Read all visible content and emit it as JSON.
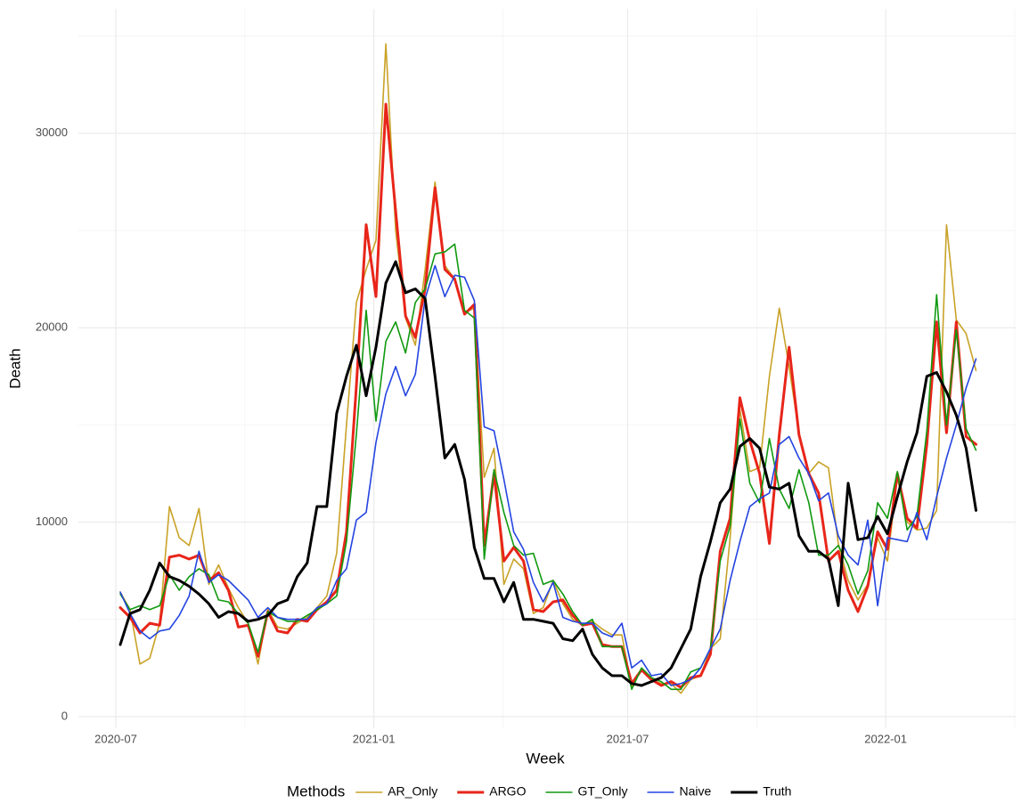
{
  "chart_data": {
    "type": "line",
    "x_label": "Week",
    "y_label": "Death",
    "legend_title": "Methods",
    "legend": "bottom",
    "grid": true,
    "ylim": [
      -600,
      36400
    ],
    "yticks": [
      0,
      10000,
      20000,
      30000
    ],
    "xticks": [
      "2020-07",
      "2021-01",
      "2021-07",
      "2022-01"
    ],
    "series": [
      {
        "name": "AR_Only",
        "color": "#c9a227",
        "width": 1.6,
        "values": [
          6400,
          5500,
          2700,
          3000,
          4800,
          10800,
          9200,
          8800,
          10700,
          6800,
          7800,
          6600,
          5600,
          4800,
          2700,
          5500,
          4600,
          4500,
          4800,
          5100,
          5600,
          6200,
          8400,
          15000,
          21300,
          23000,
          24500,
          34600,
          25000,
          20500,
          19100,
          23000,
          27500,
          23200,
          22500,
          20800,
          21000,
          12300,
          13800,
          6800,
          8100,
          7600,
          5300,
          5600,
          7000,
          5800,
          5000,
          4700,
          4900,
          4500,
          4200,
          4200,
          1500,
          2500,
          1900,
          1700,
          1700,
          1200,
          1900,
          2100,
          3500,
          4000,
          9200,
          15800,
          12600,
          12800,
          17500,
          21000,
          18000,
          14600,
          12500,
          13100,
          12800,
          8900,
          7000,
          6000,
          6800,
          9200,
          8000,
          12300,
          10000,
          9600,
          9700,
          10600,
          25300,
          20400,
          19700,
          17800
        ]
      },
      {
        "name": "ARGO",
        "color": "#e8251a",
        "width": 3,
        "values": [
          5600,
          5100,
          4300,
          4800,
          4700,
          8200,
          8300,
          8100,
          8300,
          7000,
          7400,
          6500,
          4600,
          4700,
          3100,
          5400,
          4400,
          4300,
          5000,
          4900,
          5500,
          5900,
          6500,
          9500,
          17000,
          25300,
          21600,
          31500,
          26000,
          20600,
          19500,
          22000,
          27200,
          23000,
          22500,
          20700,
          21200,
          8800,
          12500,
          8000,
          8700,
          8000,
          5500,
          5400,
          5900,
          6000,
          5200,
          4700,
          4800,
          3700,
          3600,
          3600,
          1700,
          2400,
          1900,
          1600,
          1800,
          1500,
          2000,
          2100,
          3200,
          8500,
          10200,
          16400,
          14200,
          12500,
          8900,
          14500,
          19000,
          14500,
          12500,
          11500,
          8000,
          8500,
          6500,
          5400,
          6700,
          9500,
          8600,
          12500,
          10200,
          9700,
          14000,
          20300,
          14600,
          20300,
          14400,
          14000
        ]
      },
      {
        "name": "GT_Only",
        "color": "#119910",
        "width": 1.6,
        "values": [
          6300,
          5500,
          5700,
          5500,
          5700,
          7300,
          6500,
          7200,
          7600,
          7300,
          6000,
          5900,
          5300,
          4800,
          3300,
          5400,
          5100,
          4900,
          4900,
          5200,
          5500,
          5800,
          6200,
          9000,
          14500,
          20900,
          15200,
          19300,
          20300,
          18700,
          21300,
          22000,
          23800,
          23900,
          24300,
          20900,
          20500,
          8100,
          12700,
          10500,
          8800,
          8300,
          8400,
          6800,
          7000,
          6300,
          5400,
          4700,
          5000,
          3600,
          3600,
          3600,
          1400,
          2500,
          2000,
          1800,
          1400,
          1400,
          2300,
          2500,
          3500,
          8000,
          9800,
          15300,
          12000,
          11000,
          14300,
          11700,
          10700,
          12700,
          11000,
          8300,
          8300,
          8800,
          7800,
          6300,
          7500,
          11000,
          10200,
          12600,
          9600,
          10300,
          14700,
          21700,
          15000,
          19900,
          14800,
          13700
        ]
      },
      {
        "name": "Naive",
        "color": "#2444e0",
        "width": 1.6,
        "values": [
          6400,
          5300,
          4400,
          4000,
          4400,
          4500,
          5200,
          6200,
          8500,
          6900,
          7300,
          7000,
          6500,
          6000,
          5100,
          5600,
          5100,
          5000,
          5000,
          5000,
          5600,
          5800,
          7000,
          7600,
          10100,
          10500,
          14100,
          16600,
          18000,
          16500,
          17600,
          21500,
          23200,
          21600,
          22700,
          22600,
          21400,
          14900,
          14700,
          12200,
          9500,
          8600,
          6900,
          5900,
          6900,
          5100,
          4900,
          4800,
          4800,
          4300,
          4100,
          4800,
          2500,
          2900,
          2100,
          2200,
          1600,
          1700,
          1900,
          2500,
          3500,
          4500,
          7000,
          9000,
          10800,
          11200,
          11500,
          14000,
          14400,
          13300,
          12500,
          11100,
          11500,
          9300,
          8300,
          7800,
          10100,
          5700,
          9200,
          9100,
          9000,
          10500,
          9100,
          11300,
          13300,
          15000,
          16900,
          18400
        ]
      },
      {
        "name": "Truth",
        "color": "#000000",
        "width": 3,
        "values": [
          3700,
          5300,
          5500,
          6500,
          7900,
          7200,
          7000,
          6700,
          6300,
          5800,
          5100,
          5400,
          5300,
          4900,
          5000,
          5200,
          5800,
          6000,
          7200,
          7900,
          10800,
          10800,
          15600,
          17500,
          19100,
          16500,
          19000,
          22300,
          23400,
          21800,
          22000,
          21500,
          17500,
          13300,
          14000,
          12200,
          8700,
          7100,
          7100,
          5900,
          6900,
          5000,
          5000,
          4900,
          4800,
          4000,
          3900,
          4500,
          3200,
          2500,
          2100,
          2100,
          1700,
          1600,
          1800,
          2000,
          2500,
          3500,
          4500,
          7200,
          9000,
          11000,
          11700,
          13900,
          14300,
          13800,
          11800,
          11700,
          12000,
          9300,
          8500,
          8500,
          8100,
          5700,
          12000,
          9100,
          9200,
          10300,
          9400,
          11300,
          13100,
          14600,
          17500,
          17700,
          16700,
          15500,
          13800,
          10600
        ]
      }
    ]
  }
}
